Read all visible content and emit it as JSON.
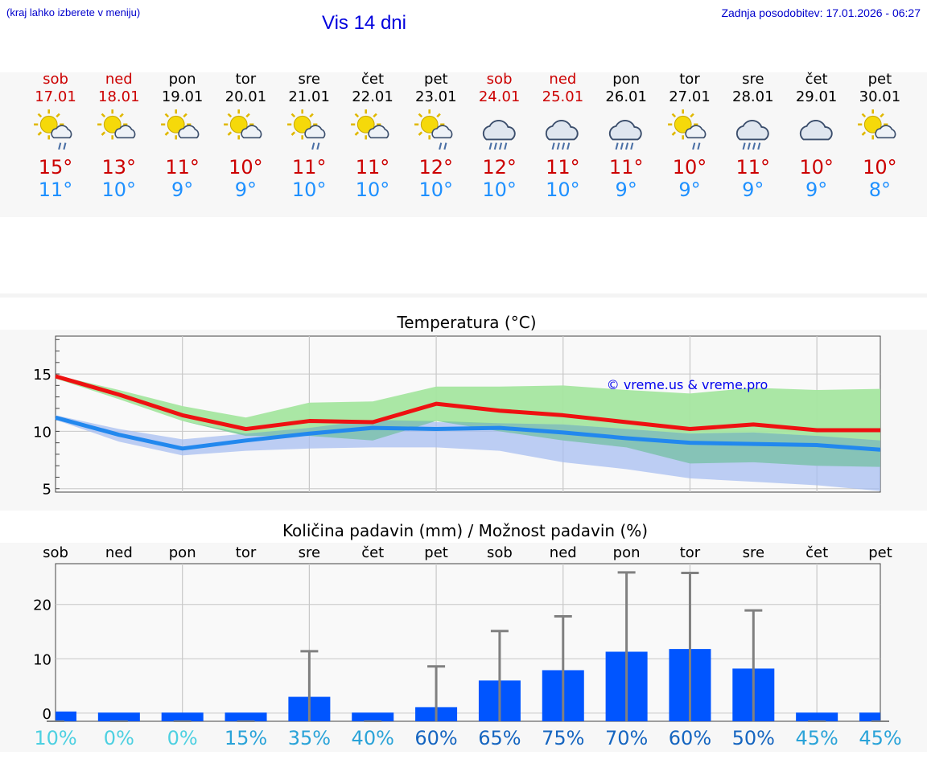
{
  "header": {
    "hint": "(kraj lahko izberete v meniju)",
    "title": "Vis 14 dni",
    "updated_label": "Zadnja posodobitev:",
    "updated_value": "17.01.2026 - 06:27"
  },
  "colors": {
    "weekend": "#cc0000",
    "weekday": "#000000",
    "tmax": "#cc0000",
    "tmin": "#1e90ff",
    "bar": "#0055ff"
  },
  "days": [
    {
      "name": "sob",
      "date": "17.01",
      "weekend": true,
      "icon": "sun-cloud-rain-icon",
      "tmax": "15°",
      "tmin": "11°"
    },
    {
      "name": "ned",
      "date": "18.01",
      "weekend": true,
      "icon": "sun-cloud-icon",
      "tmax": "13°",
      "tmin": "10°"
    },
    {
      "name": "pon",
      "date": "19.01",
      "weekend": false,
      "icon": "sun-cloud-icon",
      "tmax": "11°",
      "tmin": "9°"
    },
    {
      "name": "tor",
      "date": "20.01",
      "weekend": false,
      "icon": "sun-cloud-icon",
      "tmax": "10°",
      "tmin": "9°"
    },
    {
      "name": "sre",
      "date": "21.01",
      "weekend": false,
      "icon": "sun-cloud-rain-icon",
      "tmax": "11°",
      "tmin": "10°"
    },
    {
      "name": "čet",
      "date": "22.01",
      "weekend": false,
      "icon": "sun-cloud-icon",
      "tmax": "11°",
      "tmin": "10°"
    },
    {
      "name": "pet",
      "date": "23.01",
      "weekend": false,
      "icon": "sun-cloud-rain-icon",
      "tmax": "12°",
      "tmin": "10°"
    },
    {
      "name": "sob",
      "date": "24.01",
      "weekend": true,
      "icon": "cloud-rain-icon",
      "tmax": "12°",
      "tmin": "10°"
    },
    {
      "name": "ned",
      "date": "25.01",
      "weekend": true,
      "icon": "cloud-rain-icon",
      "tmax": "11°",
      "tmin": "10°"
    },
    {
      "name": "pon",
      "date": "26.01",
      "weekend": false,
      "icon": "cloud-rain-icon",
      "tmax": "11°",
      "tmin": "9°"
    },
    {
      "name": "tor",
      "date": "27.01",
      "weekend": false,
      "icon": "sun-cloud-rain-icon",
      "tmax": "10°",
      "tmin": "9°"
    },
    {
      "name": "sre",
      "date": "28.01",
      "weekend": false,
      "icon": "cloud-rain-icon",
      "tmax": "11°",
      "tmin": "9°"
    },
    {
      "name": "čet",
      "date": "29.01",
      "weekend": false,
      "icon": "cloud-icon",
      "tmax": "10°",
      "tmin": "9°"
    },
    {
      "name": "pet",
      "date": "30.01",
      "weekend": false,
      "icon": "sun-cloud-icon",
      "tmax": "10°",
      "tmin": "8°"
    }
  ],
  "chart_data": [
    {
      "type": "line",
      "title": "Temperatura (°C)",
      "watermark": "© vreme.us & vreme.pro",
      "ylim": [
        4.7,
        18.3
      ],
      "yticks": [
        5,
        10,
        15
      ],
      "x": [
        0,
        1,
        2,
        3,
        4,
        5,
        6,
        7,
        8,
        9,
        10,
        11,
        12,
        13
      ],
      "series": [
        {
          "name": "max",
          "color": "#ee1111",
          "values": [
            14.8,
            13.2,
            11.4,
            10.2,
            10.9,
            10.8,
            12.4,
            11.8,
            11.4,
            10.8,
            10.2,
            10.6,
            10.1,
            10.1
          ]
        },
        {
          "name": "min",
          "color": "#2288ee",
          "values": [
            11.2,
            9.7,
            8.5,
            9.2,
            9.8,
            10.3,
            10.2,
            10.3,
            9.9,
            9.4,
            9.0,
            8.9,
            8.8,
            8.4
          ]
        }
      ],
      "bands": [
        {
          "name": "max-range",
          "color": "#a5e6a0",
          "upper": [
            14.9,
            13.6,
            12.2,
            11.2,
            12.5,
            12.6,
            13.9,
            13.9,
            14.0,
            13.6,
            13.3,
            13.8,
            13.6,
            13.7
          ],
          "lower": [
            14.6,
            12.8,
            10.9,
            9.6,
            9.6,
            9.2,
            10.9,
            10.0,
            9.2,
            8.6,
            7.2,
            7.3,
            7.0,
            6.9
          ]
        },
        {
          "name": "min-range",
          "color": "#a7bef0",
          "upper": [
            11.4,
            10.2,
            9.3,
            9.8,
            10.3,
            11.0,
            10.8,
            10.7,
            10.6,
            10.2,
            9.8,
            9.9,
            9.6,
            9.2
          ],
          "lower": [
            11.0,
            9.1,
            7.9,
            8.3,
            8.5,
            8.6,
            8.6,
            8.3,
            7.3,
            6.7,
            5.9,
            5.6,
            5.3,
            4.8
          ]
        }
      ]
    },
    {
      "type": "bar",
      "title": "Količina padavin (mm) / Možnost padavin (%)",
      "categories": [
        "sob",
        "ned",
        "pon",
        "tor",
        "sre",
        "čet",
        "pet",
        "sob",
        "ned",
        "pon",
        "tor",
        "sre",
        "čet",
        "pet"
      ],
      "values": [
        0.3,
        0.1,
        0.1,
        0.1,
        3.0,
        0.1,
        1.1,
        6.0,
        7.9,
        11.3,
        11.8,
        8.2,
        0.1,
        0.1
      ],
      "error_max": [
        0,
        0,
        0,
        0,
        11.4,
        0,
        8.6,
        15.1,
        17.8,
        25.9,
        25.8,
        18.9,
        0,
        0
      ],
      "probability": [
        "10%",
        "0%",
        "0%",
        "15%",
        "35%",
        "40%",
        "60%",
        "65%",
        "75%",
        "70%",
        "60%",
        "50%",
        "45%",
        "45%"
      ],
      "prob_colors": [
        "#4dd0e1",
        "#4dd0e1",
        "#4dd0e1",
        "#2aa3d8",
        "#2aa3d8",
        "#2aa3d8",
        "#1565c0",
        "#1565c0",
        "#1565c0",
        "#1565c0",
        "#1565c0",
        "#1565c0",
        "#2aa3d8",
        "#2aa3d8"
      ],
      "ylim": [
        -1.5,
        27.5
      ],
      "yticks": [
        0,
        10,
        20
      ]
    }
  ]
}
